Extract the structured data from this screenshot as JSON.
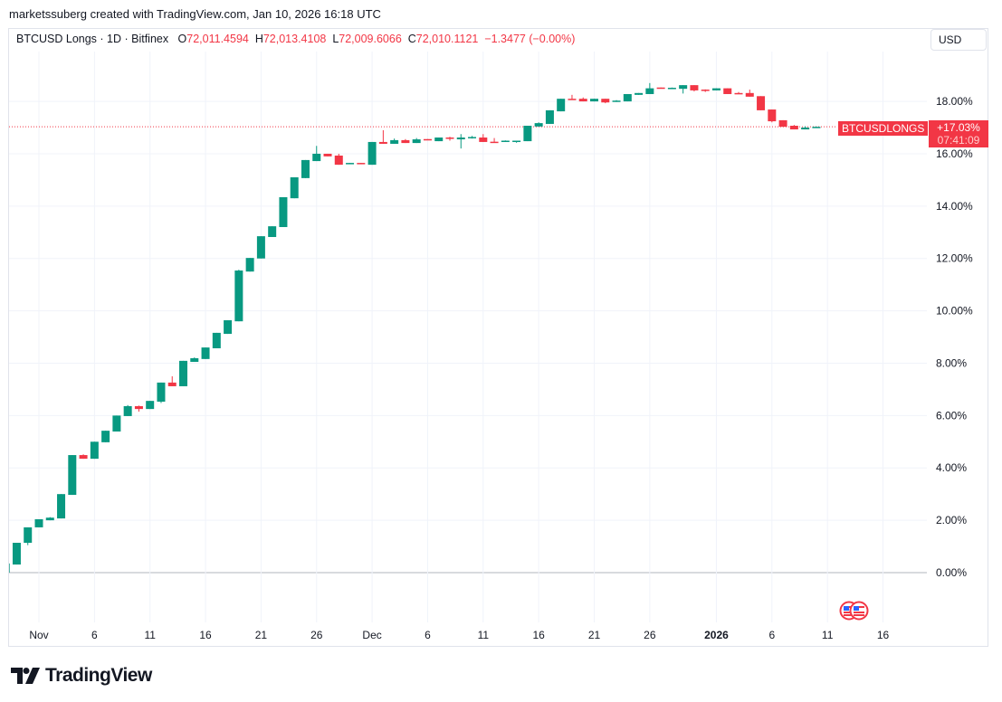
{
  "credit": "marketssuberg created with TradingView.com, Jan 10, 2026 16:18 UTC",
  "legend": {
    "symbol": "BTCUSD Longs · 1D · Bitfinex",
    "o_label": "O",
    "o": "72,011.4594",
    "h_label": "H",
    "h": "72,013.4108",
    "l_label": "L",
    "l": "72,009.6066",
    "c_label": "C",
    "c": "72,010.1121",
    "change": "−1.3477 (−0.00%)"
  },
  "currency_button": "USD",
  "last_price": {
    "symbol_tag": "BTCUSDLONGS",
    "value": "+17.03%",
    "countdown": "07:41:09",
    "level": 17.03
  },
  "colors": {
    "up": "#089981",
    "down": "#f23645",
    "grid": "#f0f3fa"
  },
  "events_icon": "us-flag-icon",
  "brand": "TradingView",
  "chart_data": {
    "type": "candlestick",
    "y_axis": {
      "ticks": [
        "0.00%",
        "2.00%",
        "4.00%",
        "6.00%",
        "8.00%",
        "10.00%",
        "12.00%",
        "14.00%",
        "16.00%",
        "18.00%"
      ],
      "values": [
        0,
        2,
        4,
        6,
        8,
        10,
        12,
        14,
        16,
        18
      ]
    },
    "x_axis": {
      "ticks": [
        "Nov",
        "6",
        "11",
        "16",
        "21",
        "26",
        "Dec",
        "6",
        "11",
        "16",
        "21",
        "26",
        "2026",
        "6",
        "11",
        "16"
      ],
      "tick_dates": [
        "2025-11-01",
        "2025-11-06",
        "2025-11-11",
        "2025-11-16",
        "2025-11-21",
        "2025-11-26",
        "2025-12-01",
        "2025-12-06",
        "2025-12-11",
        "2025-12-16",
        "2025-12-21",
        "2025-12-26",
        "2026-01-01",
        "2026-01-06",
        "2026-01-11",
        "2026-01-16"
      ]
    },
    "grid": true,
    "candles_columns": [
      "date",
      "open",
      "high",
      "low",
      "close"
    ],
    "candles": [
      [
        "2025-10-29",
        0,
        0.35,
        0,
        0.35
      ],
      [
        "2025-10-30",
        0.31,
        1.14,
        0.31,
        1.14
      ],
      [
        "2025-10-31",
        1.14,
        1.73,
        1.05,
        1.73
      ],
      [
        "2025-11-01",
        1.73,
        2.04,
        1.73,
        2.04
      ],
      [
        "2025-11-02",
        2.0,
        2.12,
        2.0,
        2.1
      ],
      [
        "2025-11-03",
        2.07,
        3.0,
        2.07,
        3.0
      ],
      [
        "2025-11-04",
        2.97,
        4.49,
        2.97,
        4.49
      ],
      [
        "2025-11-05",
        4.49,
        4.52,
        4.35,
        4.35
      ],
      [
        "2025-11-06",
        4.35,
        5.0,
        4.35,
        5.0
      ],
      [
        "2025-11-07",
        4.98,
        5.42,
        4.98,
        5.42
      ],
      [
        "2025-11-08",
        5.39,
        6.0,
        5.39,
        6.0
      ],
      [
        "2025-11-09",
        5.98,
        6.4,
        5.98,
        6.36
      ],
      [
        "2025-11-10",
        6.36,
        6.38,
        6.15,
        6.25
      ],
      [
        "2025-11-11",
        6.25,
        6.56,
        6.25,
        6.56
      ],
      [
        "2025-11-12",
        6.53,
        7.26,
        6.48,
        7.26
      ],
      [
        "2025-11-13",
        7.26,
        7.5,
        7.12,
        7.12
      ],
      [
        "2025-11-14",
        7.12,
        8.09,
        7.12,
        8.09
      ],
      [
        "2025-11-15",
        8.05,
        8.22,
        8.05,
        8.19
      ],
      [
        "2025-11-16",
        8.16,
        8.6,
        8.16,
        8.6
      ],
      [
        "2025-11-17",
        8.57,
        9.16,
        8.57,
        9.16
      ],
      [
        "2025-11-18",
        9.12,
        9.64,
        9.12,
        9.64
      ],
      [
        "2025-11-19",
        9.6,
        11.57,
        9.6,
        11.54
      ],
      [
        "2025-11-20",
        11.5,
        12.02,
        11.5,
        12.02
      ],
      [
        "2025-11-21",
        12.0,
        12.85,
        12.0,
        12.85
      ],
      [
        "2025-11-22",
        12.82,
        13.23,
        12.82,
        13.23
      ],
      [
        "2025-11-23",
        13.2,
        14.34,
        13.2,
        14.34
      ],
      [
        "2025-11-24",
        14.3,
        15.1,
        14.3,
        15.1
      ],
      [
        "2025-11-25",
        15.07,
        15.76,
        15.07,
        15.76
      ],
      [
        "2025-11-26",
        15.72,
        16.3,
        15.72,
        16.0
      ],
      [
        "2025-11-27",
        16.0,
        16.0,
        15.9,
        15.9
      ],
      [
        "2025-11-28",
        15.93,
        16.0,
        15.58,
        15.58
      ],
      [
        "2025-11-29",
        15.62,
        15.65,
        15.62,
        15.65
      ],
      [
        "2025-11-30",
        15.65,
        15.65,
        15.62,
        15.62
      ],
      [
        "2025-12-01",
        15.58,
        16.45,
        15.58,
        16.45
      ],
      [
        "2025-12-02",
        16.45,
        16.9,
        16.38,
        16.38
      ],
      [
        "2025-12-03",
        16.38,
        16.58,
        16.38,
        16.52
      ],
      [
        "2025-12-04",
        16.52,
        16.56,
        16.41,
        16.41
      ],
      [
        "2025-12-05",
        16.41,
        16.6,
        16.41,
        16.55
      ],
      [
        "2025-12-06",
        16.56,
        16.56,
        16.53,
        16.53
      ],
      [
        "2025-12-07",
        16.48,
        16.62,
        16.48,
        16.62
      ],
      [
        "2025-12-08",
        16.62,
        16.65,
        16.5,
        16.6
      ],
      [
        "2025-12-09",
        16.55,
        16.75,
        16.2,
        16.62
      ],
      [
        "2025-12-10",
        16.62,
        16.68,
        16.58,
        16.64
      ],
      [
        "2025-12-11",
        16.62,
        16.75,
        16.45,
        16.45
      ],
      [
        "2025-12-12",
        16.46,
        16.6,
        16.44,
        16.44
      ],
      [
        "2025-12-13",
        16.49,
        16.51,
        16.49,
        16.5
      ],
      [
        "2025-12-14",
        16.49,
        16.5,
        16.42,
        16.5
      ],
      [
        "2025-12-15",
        16.48,
        17.07,
        16.48,
        17.07
      ],
      [
        "2025-12-16",
        17.04,
        17.2,
        17.04,
        17.17
      ],
      [
        "2025-12-17",
        17.14,
        17.66,
        17.14,
        17.66
      ],
      [
        "2025-12-18",
        17.62,
        18.1,
        17.62,
        18.1
      ],
      [
        "2025-12-19",
        18.1,
        18.25,
        18.08,
        18.08
      ],
      [
        "2025-12-20",
        18.1,
        18.15,
        18.0,
        18.0
      ],
      [
        "2025-12-21",
        18.0,
        18.1,
        18.0,
        18.1
      ],
      [
        "2025-12-22",
        18.1,
        18.1,
        17.93,
        17.96
      ],
      [
        "2025-12-23",
        18.01,
        18.05,
        17.98,
        18.03
      ],
      [
        "2025-12-24",
        18.0,
        18.28,
        18.0,
        18.28
      ],
      [
        "2025-12-25",
        18.25,
        18.32,
        18.25,
        18.32
      ],
      [
        "2025-12-26",
        18.28,
        18.7,
        18.28,
        18.5
      ],
      [
        "2025-12-27",
        18.53,
        18.53,
        18.5,
        18.5
      ],
      [
        "2025-12-28",
        18.5,
        18.53,
        18.5,
        18.52
      ],
      [
        "2025-12-29",
        18.48,
        18.62,
        18.3,
        18.62
      ],
      [
        "2025-12-30",
        18.62,
        18.62,
        18.38,
        18.42
      ],
      [
        "2025-12-31",
        18.45,
        18.46,
        18.36,
        18.42
      ],
      [
        "2026-01-01",
        18.42,
        18.5,
        18.42,
        18.5
      ],
      [
        "2026-01-02",
        18.5,
        18.5,
        18.28,
        18.28
      ],
      [
        "2026-01-03",
        18.32,
        18.36,
        18.28,
        18.28
      ],
      [
        "2026-01-04",
        18.32,
        18.45,
        18.18,
        18.18
      ],
      [
        "2026-01-05",
        18.2,
        18.2,
        17.66,
        17.66
      ],
      [
        "2026-01-06",
        17.69,
        17.69,
        17.2,
        17.24
      ],
      [
        "2026-01-07",
        17.28,
        17.28,
        17.03,
        17.03
      ],
      [
        "2026-01-08",
        17.07,
        17.1,
        16.93,
        16.93
      ],
      [
        "2026-01-09",
        16.93,
        17.05,
        16.93,
        17.0
      ],
      [
        "2026-01-10",
        17.03,
        17.04,
        17.02,
        17.03
      ]
    ]
  }
}
